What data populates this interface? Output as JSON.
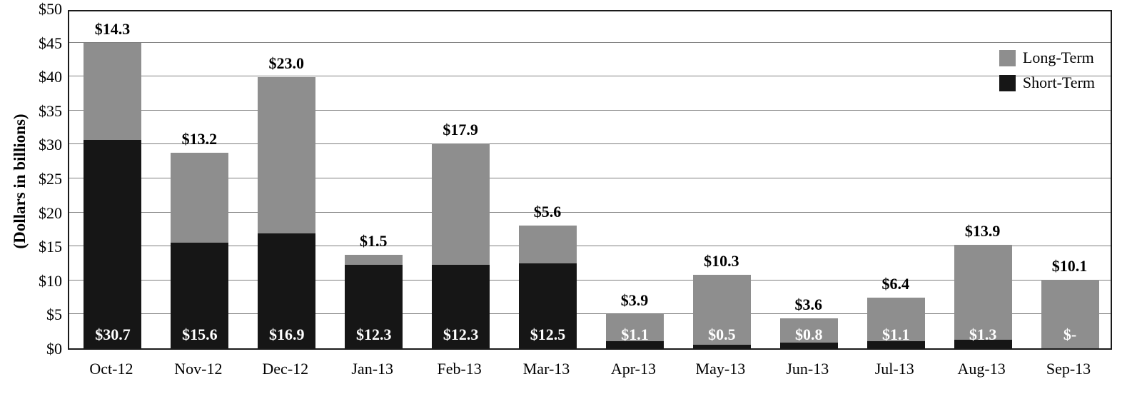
{
  "chart_data": {
    "type": "bar",
    "stacked": true,
    "title": "",
    "xlabel": "",
    "ylabel": "(Dollars in billions)",
    "ylim": [
      0,
      50
    ],
    "ytick_step": 5,
    "ytick_labels": [
      "$0",
      "$5",
      "$10",
      "$15",
      "$20",
      "$25",
      "$30",
      "$35",
      "$40",
      "$45",
      "$50"
    ],
    "grid": "horizontal",
    "categories": [
      "Oct-12",
      "Nov-12",
      "Dec-12",
      "Jan-13",
      "Feb-13",
      "Mar-13",
      "Apr-13",
      "May-13",
      "Jun-13",
      "Jul-13",
      "Aug-13",
      "Sep-13"
    ],
    "series": [
      {
        "name": "Short-Term",
        "color": "#161616",
        "values": [
          30.7,
          15.6,
          16.9,
          12.3,
          12.3,
          12.5,
          1.1,
          0.5,
          0.8,
          1.1,
          1.3,
          0
        ],
        "labels": [
          "$30.7",
          "$15.6",
          "$16.9",
          "$12.3",
          "$12.3",
          "$12.5",
          "$1.1",
          "$0.5",
          "$0.8",
          "$1.1",
          "$1.3",
          "$-"
        ]
      },
      {
        "name": "Long-Term",
        "color": "#8e8e8e",
        "values": [
          14.3,
          13.2,
          23.0,
          1.5,
          17.9,
          5.6,
          3.9,
          10.3,
          3.6,
          6.4,
          13.9,
          10.1
        ],
        "labels": [
          "$14.3",
          "$13.2",
          "$23.0",
          "$1.5",
          "$17.9",
          "$5.6",
          "$3.9",
          "$10.3",
          "$3.6",
          "$6.4",
          "$13.9",
          "$10.1"
        ]
      }
    ],
    "legend": {
      "position": "top-right",
      "items": [
        {
          "label": "Long-Term",
          "color": "#8e8e8e"
        },
        {
          "label": "Short-Term",
          "color": "#161616"
        }
      ]
    }
  }
}
